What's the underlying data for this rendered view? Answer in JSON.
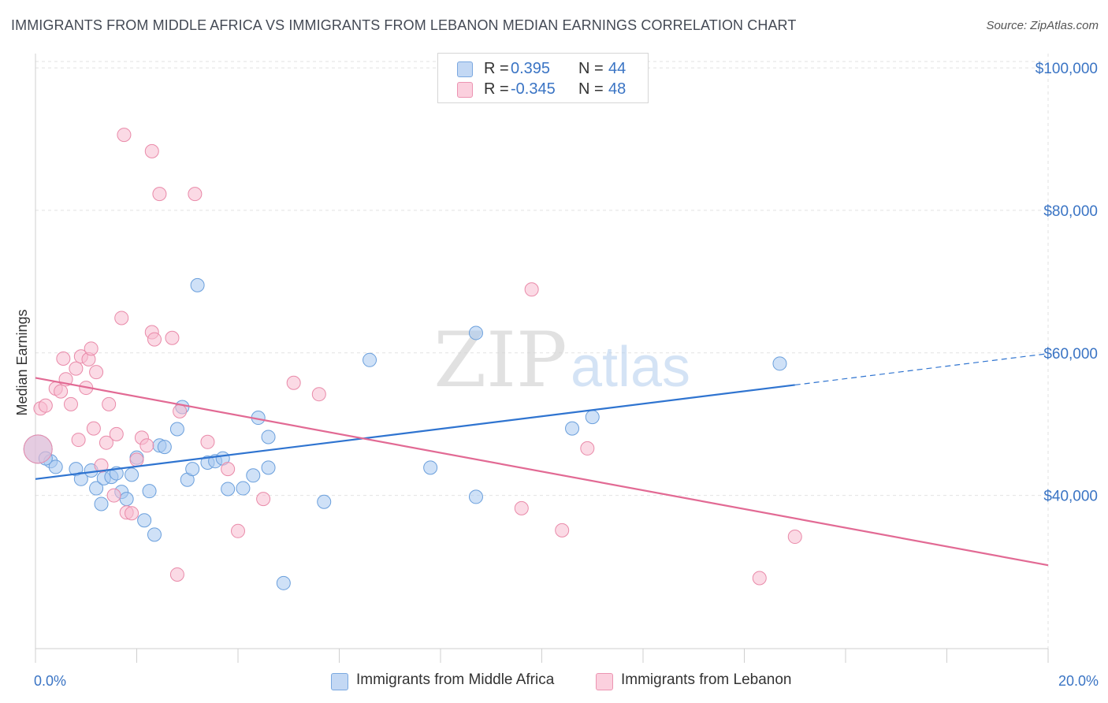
{
  "title": "IMMIGRANTS FROM MIDDLE AFRICA VS IMMIGRANTS FROM LEBANON MEDIAN EARNINGS CORRELATION CHART",
  "source": "Source: ZipAtlas.com",
  "watermark": {
    "zip": "ZIP",
    "atlas": "atlas"
  },
  "legend": {
    "r_label": "R =",
    "n_label": "N =",
    "rows": [
      {
        "r": "0.395",
        "n": "44",
        "color": "#a8c8f0"
      },
      {
        "r": "-0.345",
        "n": "48",
        "color": "#f7bcd0"
      }
    ]
  },
  "bottom_legend": [
    {
      "label": "Immigrants from Middle Africa",
      "color": "#a8c8f0"
    },
    {
      "label": "Immigrants from Lebanon",
      "color": "#f7bcd0"
    }
  ],
  "chart_data": {
    "type": "scatter",
    "ylabel": "Median Earnings",
    "x_tick_labels": {
      "min": "0.0%",
      "max": "20.0%"
    },
    "y_tick_labels": [
      "$40,000",
      "$60,000",
      "$80,000",
      "$100,000"
    ],
    "y_ticks": [
      40000,
      60000,
      80000,
      100000
    ],
    "xlim": [
      0,
      20
    ],
    "ylim": [
      18500,
      102000
    ],
    "grid": true,
    "legend_position": "top-center",
    "series": [
      {
        "name": "Immigrants from Middle Africa",
        "color": "#a8c8f0",
        "edge": "#6a9fdc",
        "trend_color": "#2f74d0",
        "trend": {
          "x0": 0,
          "y0": 42300,
          "x1": 15,
          "y1": 55500,
          "dashed_to_x": 20,
          "dashed_to_y": 59900
        },
        "points": [
          [
            0.05,
            46500
          ],
          [
            0.3,
            44800
          ],
          [
            0.4,
            44000
          ],
          [
            0.8,
            43700
          ],
          [
            0.9,
            42300
          ],
          [
            1.1,
            43500
          ],
          [
            1.2,
            41000
          ],
          [
            1.35,
            42400
          ],
          [
            1.5,
            42600
          ],
          [
            1.3,
            38800
          ],
          [
            1.6,
            43100
          ],
          [
            1.7,
            40500
          ],
          [
            1.8,
            39500
          ],
          [
            1.9,
            42900
          ],
          [
            2.0,
            45300
          ],
          [
            2.15,
            36500
          ],
          [
            2.25,
            40600
          ],
          [
            2.35,
            34500
          ],
          [
            2.45,
            47000
          ],
          [
            2.55,
            46800
          ],
          [
            2.8,
            49300
          ],
          [
            2.9,
            52400
          ],
          [
            3.0,
            42200
          ],
          [
            3.1,
            43700
          ],
          [
            3.2,
            69500
          ],
          [
            3.4,
            44600
          ],
          [
            3.55,
            44800
          ],
          [
            3.7,
            45200
          ],
          [
            3.8,
            40900
          ],
          [
            4.1,
            41000
          ],
          [
            4.3,
            42800
          ],
          [
            4.4,
            50900
          ],
          [
            4.6,
            43900
          ],
          [
            4.6,
            48200
          ],
          [
            4.9,
            27700
          ],
          [
            5.7,
            39100
          ],
          [
            6.6,
            59000
          ],
          [
            7.8,
            43900
          ],
          [
            8.7,
            39800
          ],
          [
            8.7,
            62800
          ],
          [
            10.6,
            49400
          ],
          [
            11.0,
            51000
          ],
          [
            14.7,
            58500
          ],
          [
            0.2,
            45200
          ]
        ]
      },
      {
        "name": "Immigrants from Lebanon",
        "color": "#f7bcd0",
        "edge": "#e98aa9",
        "trend_color": "#e26a94",
        "trend": {
          "x0": 0,
          "y0": 56500,
          "x1": 20,
          "y1": 30200
        },
        "points": [
          [
            0.05,
            46500
          ],
          [
            0.1,
            52200
          ],
          [
            0.2,
            52600
          ],
          [
            0.4,
            55000
          ],
          [
            0.5,
            54600
          ],
          [
            0.55,
            59200
          ],
          [
            0.6,
            56300
          ],
          [
            0.7,
            52800
          ],
          [
            0.8,
            57800
          ],
          [
            0.9,
            59500
          ],
          [
            1.0,
            55100
          ],
          [
            0.85,
            47800
          ],
          [
            1.05,
            59100
          ],
          [
            1.1,
            60600
          ],
          [
            1.15,
            49400
          ],
          [
            1.2,
            57300
          ],
          [
            1.3,
            44200
          ],
          [
            1.4,
            47400
          ],
          [
            1.45,
            52800
          ],
          [
            1.55,
            40000
          ],
          [
            1.6,
            48600
          ],
          [
            1.7,
            64900
          ],
          [
            1.75,
            90600
          ],
          [
            1.8,
            37600
          ],
          [
            1.9,
            37500
          ],
          [
            2.0,
            45000
          ],
          [
            2.1,
            48100
          ],
          [
            2.2,
            47000
          ],
          [
            2.3,
            88300
          ],
          [
            2.3,
            62900
          ],
          [
            2.35,
            61900
          ],
          [
            2.45,
            82300
          ],
          [
            2.7,
            62100
          ],
          [
            2.8,
            28900
          ],
          [
            2.85,
            51800
          ],
          [
            3.15,
            82300
          ],
          [
            3.4,
            47500
          ],
          [
            3.8,
            43700
          ],
          [
            4.0,
            35000
          ],
          [
            4.5,
            39500
          ],
          [
            5.1,
            55800
          ],
          [
            5.6,
            54200
          ],
          [
            9.6,
            38200
          ],
          [
            9.8,
            68900
          ],
          [
            10.4,
            35100
          ],
          [
            10.9,
            46600
          ],
          [
            14.3,
            28400
          ],
          [
            15.0,
            34200
          ]
        ]
      }
    ]
  }
}
